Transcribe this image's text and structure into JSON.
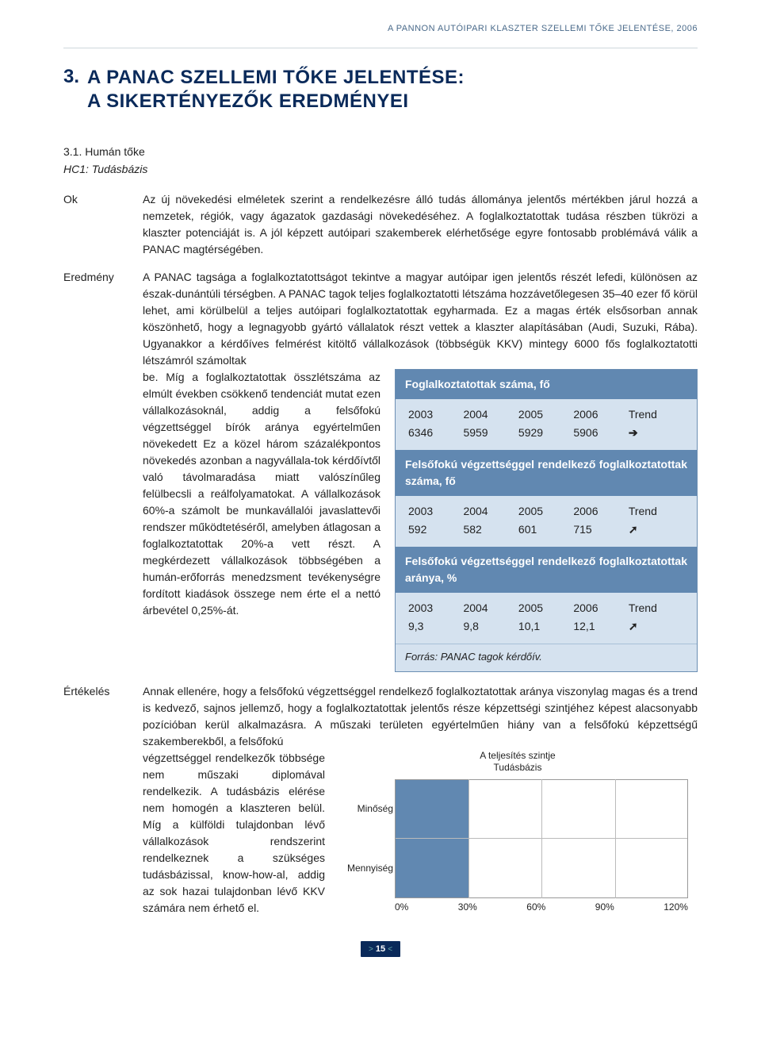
{
  "doc_header": "A PANNON AUTÓIPARI KLASZTER SZELLEMI TŐKE JELENTÉSE, 2006",
  "section_num": "3.",
  "section_title_l1": "A PANAC SZELLEMI TŐKE JELENTÉSE:",
  "section_title_l2": "A SIKERTÉNYEZŐK EREDMÉNYEI",
  "subsection": "3.1. Humán tőke",
  "subsection_italic": "HC1: Tudásbázis",
  "labels": {
    "ok": "Ok",
    "eredmeny": "Eredmény",
    "ertekeles": "Értékelés"
  },
  "ok_text": "Az új növekedési elméletek szerint a rendelkezésre álló tudás állománya jelentős mértékben járul hozzá a nemzetek, régiók, vagy ágazatok gazdasági növekedéséhez. A foglalkoztatottak tudása részben tükrözi a klaszter potenciáját is. A jól képzett autóipari szakemberek elérhetősége egyre fontosabb problémává válik a PANAC magtérségében.",
  "eredmeny_intro": "A PANAC tagsága a foglalkoztatottságot tekintve a magyar autóipar igen jelentős részét lefedi, különösen az észak-dunántúli térségben. A PANAC tagok teljes foglalkoztatotti létszáma hozzávetőlegesen 35–40 ezer fő körül lehet, ami körülbelül a teljes autóipari foglalkoztatottak egyharmada. Ez a magas érték elsősorban annak köszönhető, hogy a legnagyobb gyártó vállalatok részt vettek a klaszter alapításában (Audi, Suzuki, Rába). Ugyanakkor a kérdőíves felmérést kitöltő vállalkozások (többségük KKV) mintegy 6000 fős foglalkoztatotti létszámról számoltak",
  "eredmeny_side": "be. Míg a foglalkoztatottak összlétszáma az elmúlt években csökkenő tendenciát mutat ezen vállalkozásoknál, addig a felsőfokú végzettséggel bírók aránya egyértelműen növekedett Ez a közel három százalékpontos növekedés azonban a nagyvállala-tok kérdőívtől való távolmaradása miatt valószínűleg felülbecsli a reálfolyamatokat. A vállalkozások 60%-a számolt be munkavállalói javaslattevői rendszer működtetéséről, amelyben átlagosan a foglalkoztatottak 20%-a vett részt. A megkérdezett vállalkozások többségében a humán-erőforrás menedzsment tevékenységre fordított kiadások összege nem érte el a nettó árbevétel 0,25%-át.",
  "ertekeles_intro": "Annak ellenére, hogy a felsőfokú végzettséggel rendelkező foglalkoztatottak aránya viszonylag magas és a trend is kedvező, sajnos jellemző, hogy a foglalkoztatottak jelentős része képzettségi szintjéhez képest alacsonyabb pozícióban kerül alkalmazásra. A műszaki területen egyértelműen hiány van a felsőfokú képzettségű szakemberekből, a felsőfokú",
  "ertekeles_side": "végzettséggel rendelkezők többsége nem műszaki diplomával rendelkezik. A tudásbázis elérése nem homogén a klaszteren belül. Míg a külföldi tulajdonban lévő vállalkozások rendszerint rendelkeznek a szükséges tudásbázissal, know-how-al, addig az sok hazai tulajdonban lévő KKV számára nem érhető el.",
  "tables": {
    "trend_label": "Trend",
    "arrows": {
      "right": "➔",
      "up": "➚"
    },
    "t1": {
      "title": "Foglalkoztatottak száma, fő",
      "years": [
        "2003",
        "2004",
        "2005",
        "2006"
      ],
      "values": [
        "6346",
        "5959",
        "5929",
        "5906"
      ],
      "trend": "right"
    },
    "t2": {
      "title": "Felsőfokú végzettséggel rendelkező foglalkoztatottak száma, fő",
      "years": [
        "2003",
        "2004",
        "2005",
        "2006"
      ],
      "values": [
        "592",
        "582",
        "601",
        "715"
      ],
      "trend": "up"
    },
    "t3": {
      "title": "Felsőfokú végzettséggel rendelkező foglalkoztatottak aránya, %",
      "years": [
        "2003",
        "2004",
        "2005",
        "2006"
      ],
      "values": [
        "9,3",
        "9,8",
        "10,1",
        "12,1"
      ],
      "trend": "up"
    },
    "source": "Forrás: PANAC tagok kérdőív."
  },
  "chart": {
    "title_l1": "A teljesítés szintje",
    "title_l2": "Tudásbázis",
    "y_labels": [
      "Minőség",
      "Mennyiség"
    ],
    "x_labels": [
      "0%",
      "30%",
      "60%",
      "90%",
      "120%"
    ],
    "bars_pct": [
      30,
      30
    ],
    "bar_color": "#6188b1",
    "bg_color": "#ffffff",
    "grid_color": "#bbbbbb"
  },
  "page_number": "15"
}
